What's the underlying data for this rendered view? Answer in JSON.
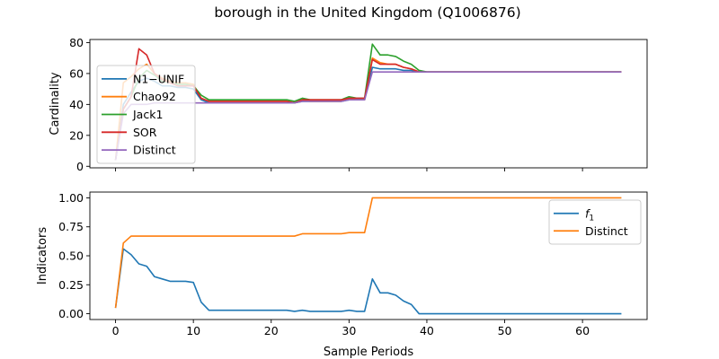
{
  "figure_title": "borough in the United Kingdom (Q1006876)",
  "colors": {
    "n1_unif": "#1f77b4",
    "chao92": "#ff7f0e",
    "jack1": "#2ca02c",
    "sor": "#d62728",
    "distinct": "#9467bd",
    "f1": "#1f77b4",
    "distinct_ratio": "#ff7f0e"
  },
  "chart_data": [
    {
      "type": "line",
      "title": "",
      "xlabel": "",
      "ylabel": "Cardinality",
      "xlim": [
        -3.3,
        68.3
      ],
      "ylim": [
        -1,
        82
      ],
      "xticks": [
        0,
        10,
        20,
        30,
        40,
        50,
        60
      ],
      "yticks": [
        0,
        20,
        40,
        60,
        80
      ],
      "show_xticklabels": false,
      "grid": false,
      "legend": "center-left",
      "x": [
        0,
        1,
        2,
        3,
        4,
        5,
        6,
        7,
        8,
        9,
        10,
        11,
        12,
        13,
        14,
        15,
        16,
        17,
        18,
        19,
        20,
        21,
        22,
        23,
        24,
        25,
        26,
        27,
        28,
        29,
        30,
        31,
        32,
        33,
        34,
        35,
        36,
        37,
        38,
        39,
        40,
        41,
        42,
        43,
        44,
        45,
        46,
        47,
        48,
        49,
        50,
        51,
        52,
        53,
        54,
        55,
        56,
        57,
        58,
        59,
        60,
        61,
        62,
        63,
        64,
        65
      ],
      "series": [
        {
          "name": "N1−UNIF",
          "color_key": "n1_unif",
          "values": [
            4,
            40,
            48,
            55,
            57,
            55,
            52,
            52,
            51,
            51,
            50,
            43,
            41,
            41,
            41,
            41,
            41,
            41,
            41,
            41,
            41,
            41,
            41,
            41,
            42,
            42,
            42,
            42,
            42,
            42,
            43,
            43,
            43,
            64,
            63,
            63,
            63,
            62,
            62,
            61,
            61,
            61,
            61,
            61,
            61,
            61,
            61,
            61,
            61,
            61,
            61,
            61,
            61,
            61,
            61,
            61,
            61,
            61,
            61,
            61,
            61,
            61,
            61,
            61,
            61,
            61
          ]
        },
        {
          "name": "Chao92",
          "color_key": "chao92",
          "values": [
            4,
            54,
            58,
            63,
            66,
            60,
            57,
            55,
            54,
            54,
            53,
            44,
            42,
            42,
            42,
            42,
            42,
            42,
            42,
            42,
            42,
            42,
            42,
            41,
            43,
            42,
            42,
            42,
            42,
            42,
            44,
            43,
            43,
            70,
            67,
            66,
            66,
            64,
            63,
            61,
            61,
            61,
            61,
            61,
            61,
            61,
            61,
            61,
            61,
            61,
            61,
            61,
            61,
            61,
            61,
            61,
            61,
            61,
            61,
            61,
            61,
            61,
            61,
            61,
            61,
            61
          ]
        },
        {
          "name": "Jack1",
          "color_key": "jack1",
          "values": [
            4,
            37,
            45,
            57,
            62,
            59,
            55,
            54,
            53,
            53,
            52,
            46,
            43,
            43,
            43,
            43,
            43,
            43,
            43,
            43,
            43,
            43,
            43,
            42,
            44,
            43,
            43,
            43,
            43,
            43,
            45,
            44,
            44,
            79,
            72,
            72,
            71,
            68,
            66,
            62,
            61,
            61,
            61,
            61,
            61,
            61,
            61,
            61,
            61,
            61,
            61,
            61,
            61,
            61,
            61,
            61,
            61,
            61,
            61,
            61,
            61,
            61,
            61,
            61,
            61,
            61
          ]
        },
        {
          "name": "SOR",
          "color_key": "sor",
          "values": [
            4,
            37,
            45,
            76,
            72,
            60,
            56,
            54,
            52,
            52,
            52,
            44,
            42,
            42,
            42,
            42,
            42,
            42,
            42,
            42,
            42,
            42,
            42,
            41,
            43,
            43,
            43,
            43,
            43,
            43,
            44,
            44,
            44,
            69,
            66,
            66,
            66,
            64,
            63,
            61,
            61,
            61,
            61,
            61,
            61,
            61,
            61,
            61,
            61,
            61,
            61,
            61,
            61,
            61,
            61,
            61,
            61,
            61,
            61,
            61,
            61,
            61,
            61,
            61,
            61,
            61
          ]
        },
        {
          "name": "Distinct",
          "color_key": "distinct",
          "values": [
            4,
            34,
            40,
            40,
            40,
            41,
            41,
            41,
            41,
            41,
            41,
            41,
            41,
            41,
            41,
            41,
            41,
            41,
            41,
            41,
            41,
            41,
            41,
            41,
            42,
            42,
            42,
            42,
            42,
            42,
            43,
            43,
            43,
            61,
            61,
            61,
            61,
            61,
            61,
            61,
            61,
            61,
            61,
            61,
            61,
            61,
            61,
            61,
            61,
            61,
            61,
            61,
            61,
            61,
            61,
            61,
            61,
            61,
            61,
            61,
            61,
            61,
            61,
            61,
            61,
            61
          ]
        }
      ]
    },
    {
      "type": "line",
      "title": "",
      "xlabel": "Sample Periods",
      "ylabel": "Indicators",
      "xlim": [
        -3.3,
        68.3
      ],
      "ylim": [
        -0.05,
        1.05
      ],
      "xticks": [
        0,
        10,
        20,
        30,
        40,
        50,
        60
      ],
      "yticks": [
        0,
        0.25,
        0.5,
        0.75,
        1
      ],
      "xticklabels": [
        "0",
        "10",
        "20",
        "30",
        "40",
        "50",
        "60"
      ],
      "yticklabels": [
        "0.00",
        "0.25",
        "0.50",
        "0.75",
        "1.00"
      ],
      "grid": false,
      "legend": "top-right",
      "x": [
        0,
        1,
        2,
        3,
        4,
        5,
        6,
        7,
        8,
        9,
        10,
        11,
        12,
        13,
        14,
        15,
        16,
        17,
        18,
        19,
        20,
        21,
        22,
        23,
        24,
        25,
        26,
        27,
        28,
        29,
        30,
        31,
        32,
        33,
        34,
        35,
        36,
        37,
        38,
        39,
        40,
        41,
        42,
        43,
        44,
        45,
        46,
        47,
        48,
        49,
        50,
        51,
        52,
        53,
        54,
        55,
        56,
        57,
        58,
        59,
        60,
        61,
        62,
        63,
        64,
        65
      ],
      "series": [
        {
          "name": "f",
          "name_sub": "1",
          "color_key": "f1",
          "values": [
            0.05,
            0.56,
            0.51,
            0.43,
            0.41,
            0.32,
            0.3,
            0.28,
            0.28,
            0.28,
            0.27,
            0.1,
            0.03,
            0.03,
            0.03,
            0.03,
            0.03,
            0.03,
            0.03,
            0.03,
            0.03,
            0.03,
            0.03,
            0.02,
            0.03,
            0.02,
            0.02,
            0.02,
            0.02,
            0.02,
            0.03,
            0.02,
            0.02,
            0.3,
            0.18,
            0.18,
            0.16,
            0.11,
            0.08,
            0.0,
            0.0,
            0.0,
            0.0,
            0.0,
            0.0,
            0.0,
            0.0,
            0.0,
            0.0,
            0.0,
            0.0,
            0.0,
            0.0,
            0.0,
            0.0,
            0.0,
            0.0,
            0.0,
            0.0,
            0.0,
            0.0,
            0.0,
            0.0,
            0.0,
            0.0,
            0.0
          ]
        },
        {
          "name": "Distinct",
          "color_key": "distinct_ratio",
          "values": [
            0.05,
            0.61,
            0.67,
            0.67,
            0.67,
            0.67,
            0.67,
            0.67,
            0.67,
            0.67,
            0.67,
            0.67,
            0.67,
            0.67,
            0.67,
            0.67,
            0.67,
            0.67,
            0.67,
            0.67,
            0.67,
            0.67,
            0.67,
            0.67,
            0.69,
            0.69,
            0.69,
            0.69,
            0.69,
            0.69,
            0.7,
            0.7,
            0.7,
            1.0,
            1.0,
            1.0,
            1.0,
            1.0,
            1.0,
            1.0,
            1.0,
            1.0,
            1.0,
            1.0,
            1.0,
            1.0,
            1.0,
            1.0,
            1.0,
            1.0,
            1.0,
            1.0,
            1.0,
            1.0,
            1.0,
            1.0,
            1.0,
            1.0,
            1.0,
            1.0,
            1.0,
            1.0,
            1.0,
            1.0,
            1.0,
            1.0
          ]
        }
      ]
    }
  ]
}
